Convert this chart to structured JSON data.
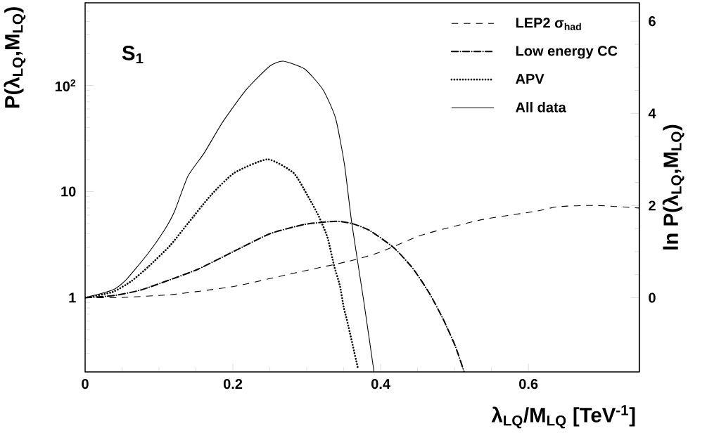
{
  "chart_data": {
    "type": "line",
    "xlabel": "λ$_{LQ}$/M$_{LQ}$ [TeV$^{-1}$]",
    "ylabel": "P(λ$_{LQ}$,M$_{LQ}$)",
    "y2label": "ln P(λ$_{LQ}$,M$_{LQ}$)",
    "annotations": [
      "S$_{1}$"
    ],
    "xlim": [
      0,
      0.75
    ],
    "xticks": [
      0,
      0.2,
      0.4,
      0.6
    ],
    "ylim": [
      0.2,
      600
    ],
    "yticks": [
      1,
      10,
      {
        "value": 100,
        "label": "10$^{2}$"
      }
    ],
    "log": "y",
    "y2lim": [
      -1.61,
      6.4
    ],
    "y2ticks": [
      0,
      2,
      4,
      6
    ],
    "legend": "top right",
    "grid": false,
    "marker": "none",
    "series": [
      {
        "name": "LEP2 σ$_{had}$",
        "color": "#000000",
        "line_style": "dashed",
        "x": [
          0,
          0.044,
          0.1,
          0.123,
          0.202,
          0.282,
          0.361,
          0.4,
          0.456,
          0.535,
          0.609,
          0.64,
          0.69,
          0.75
        ],
        "values": [
          1,
          1.0,
          1.05,
          1.08,
          1.28,
          1.7,
          2.24,
          2.7,
          3.9,
          5.4,
          6.5,
          7.2,
          7.4,
          7.0
        ]
      },
      {
        "name": "Low energy CC",
        "color": "#000000",
        "line_style": "dashdot",
        "x": [
          0,
          0.04,
          0.075,
          0.113,
          0.153,
          0.202,
          0.25,
          0.297,
          0.339,
          0.361,
          0.385,
          0.418,
          0.444,
          0.466,
          0.485,
          0.501,
          0.513
        ],
        "values": [
          1,
          1.05,
          1.18,
          1.46,
          1.86,
          2.75,
          4.0,
          4.9,
          5.25,
          5.0,
          4.3,
          2.95,
          1.87,
          1.1,
          0.62,
          0.35,
          0.2
        ]
      },
      {
        "name": "APV",
        "color": "#000000",
        "line_style": "dotted",
        "x": [
          0,
          0.037,
          0.063,
          0.087,
          0.115,
          0.139,
          0.17,
          0.202,
          0.247,
          0.282,
          0.301,
          0.316,
          0.328,
          0.337,
          0.345,
          0.35,
          0.355,
          0.369
        ],
        "values": [
          1,
          1.13,
          1.44,
          2.0,
          3.1,
          5.0,
          9.2,
          15,
          20.1,
          15,
          9.2,
          5.9,
          3.7,
          2.0,
          1.28,
          0.81,
          0.59,
          0.22
        ]
      },
      {
        "name": "All data",
        "color": "#000000",
        "line_style": "solid",
        "x": [
          0,
          0.037,
          0.056,
          0.085,
          0.107,
          0.121,
          0.139,
          0.161,
          0.186,
          0.218,
          0.25,
          0.268,
          0.297,
          0.322,
          0.339,
          0.351,
          0.361,
          0.377,
          0.391
        ],
        "values": [
          1,
          1.18,
          1.49,
          2.6,
          4.3,
          6.5,
          13.9,
          23,
          45,
          91,
          152,
          169,
          143,
          91,
          49,
          18,
          5,
          0.94,
          0.2
        ]
      }
    ]
  }
}
